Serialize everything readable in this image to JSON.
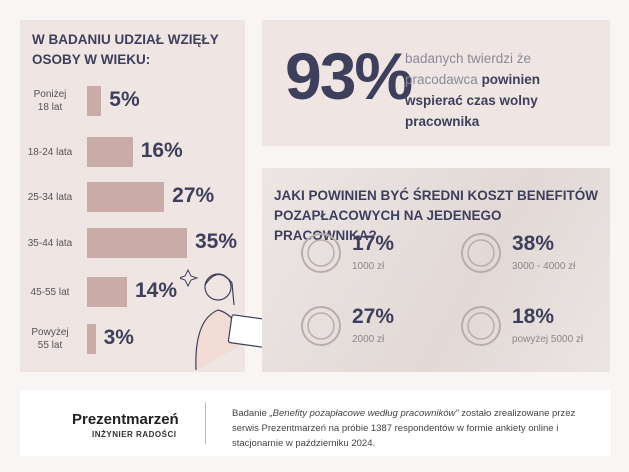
{
  "chart_data": {
    "type": "bar",
    "orientation": "horizontal",
    "title": "W BADANIU UDZIAŁ WZIĘŁY OSOBY W WIEKU:",
    "categories": [
      "Poniżej\n18 lat",
      "18-24 lata",
      "25-34 lata",
      "35-44 lata",
      "45-55 lat",
      "Powyżej\n55 lat"
    ],
    "values": [
      5,
      16,
      27,
      35,
      14,
      3
    ],
    "value_labels": [
      "5%",
      "16%",
      "27%",
      "35%",
      "14%",
      "3%"
    ],
    "color": "#c9aba8"
  },
  "highlight": {
    "value": "93%",
    "text": "badanych twierdzi że pracodawca",
    "text_bold": "powinien wspierać czas wolny pracownika"
  },
  "costs": {
    "title": "JAKI POWINIEN BYĆ ŚREDNI KOSZT BENEFITÓW POZAPŁACOWYCH NA JEDENEGO PRACOWNIKA?",
    "items": [
      {
        "value": "17%",
        "label": "1000 zł"
      },
      {
        "value": "38%",
        "label": "3000 - 4000 zł"
      },
      {
        "value": "27%",
        "label": "2000 zł"
      },
      {
        "value": "18%",
        "label": "powyżej 5000 zł"
      }
    ]
  },
  "footer": {
    "brand": "Prezentmarzeń",
    "tagline": "INŻYNIER RADOŚCI",
    "note_start": "Badanie",
    "note_title": "„Benefity pozapłacowe według pracowników”",
    "note_end": "zostało zrealizowane przez serwis Prezentmarzeń na próbie 1387 respondentów w formie ankiety online i stacjonarnie w październiku 2024."
  }
}
